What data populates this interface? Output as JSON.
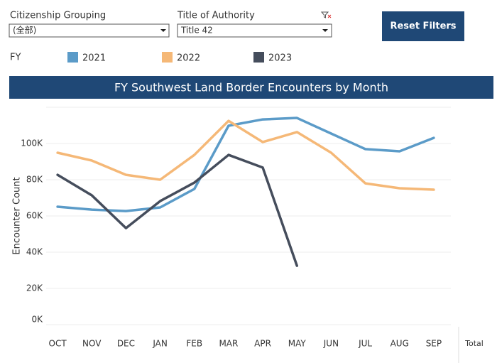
{
  "filters": [
    {
      "label": "Citizenship Grouping",
      "value": "(全部)"
    },
    {
      "label": "Title of Authority",
      "value": "Title 42"
    }
  ],
  "button": "Reset Filters",
  "legend_title": "FY",
  "total_label": "Total",
  "chart_data": {
    "type": "line",
    "title": "FY Southwest Land Border Encounters by Month",
    "y_label": "Encounter Count",
    "categories": [
      "OCT",
      "NOV",
      "DEC",
      "JAN",
      "FEB",
      "MAR",
      "APR",
      "MAY",
      "JUN",
      "JUL",
      "AUG",
      "SEP"
    ],
    "series": [
      {
        "name": "2021",
        "color": "#5b9bc8",
        "values": [
          65100,
          63500,
          62700,
          64700,
          74900,
          109800,
          113300,
          114100,
          105500,
          96900,
          95700,
          103100
        ]
      },
      {
        "name": "2022",
        "color": "#f5b877",
        "values": [
          94900,
          90600,
          82700,
          80000,
          93700,
          112500,
          100800,
          106300,
          94900,
          78000,
          75300,
          74500
        ]
      },
      {
        "name": "2023",
        "color": "#454d5c",
        "values": [
          82700,
          71400,
          53300,
          68200,
          78400,
          93700,
          86700,
          32500,
          null,
          null,
          null,
          null
        ]
      }
    ],
    "ylim": [
      0,
      120000
    ],
    "yticks": [
      {
        "value": 0,
        "label": "0K"
      },
      {
        "value": 20000,
        "label": "20K"
      },
      {
        "value": 40000,
        "label": "40K"
      },
      {
        "value": 60000,
        "label": "60K"
      },
      {
        "value": 80000,
        "label": "80K"
      },
      {
        "value": 100000,
        "label": "100K"
      },
      {
        "value": 120000,
        "label": ""
      }
    ],
    "grid": true
  }
}
